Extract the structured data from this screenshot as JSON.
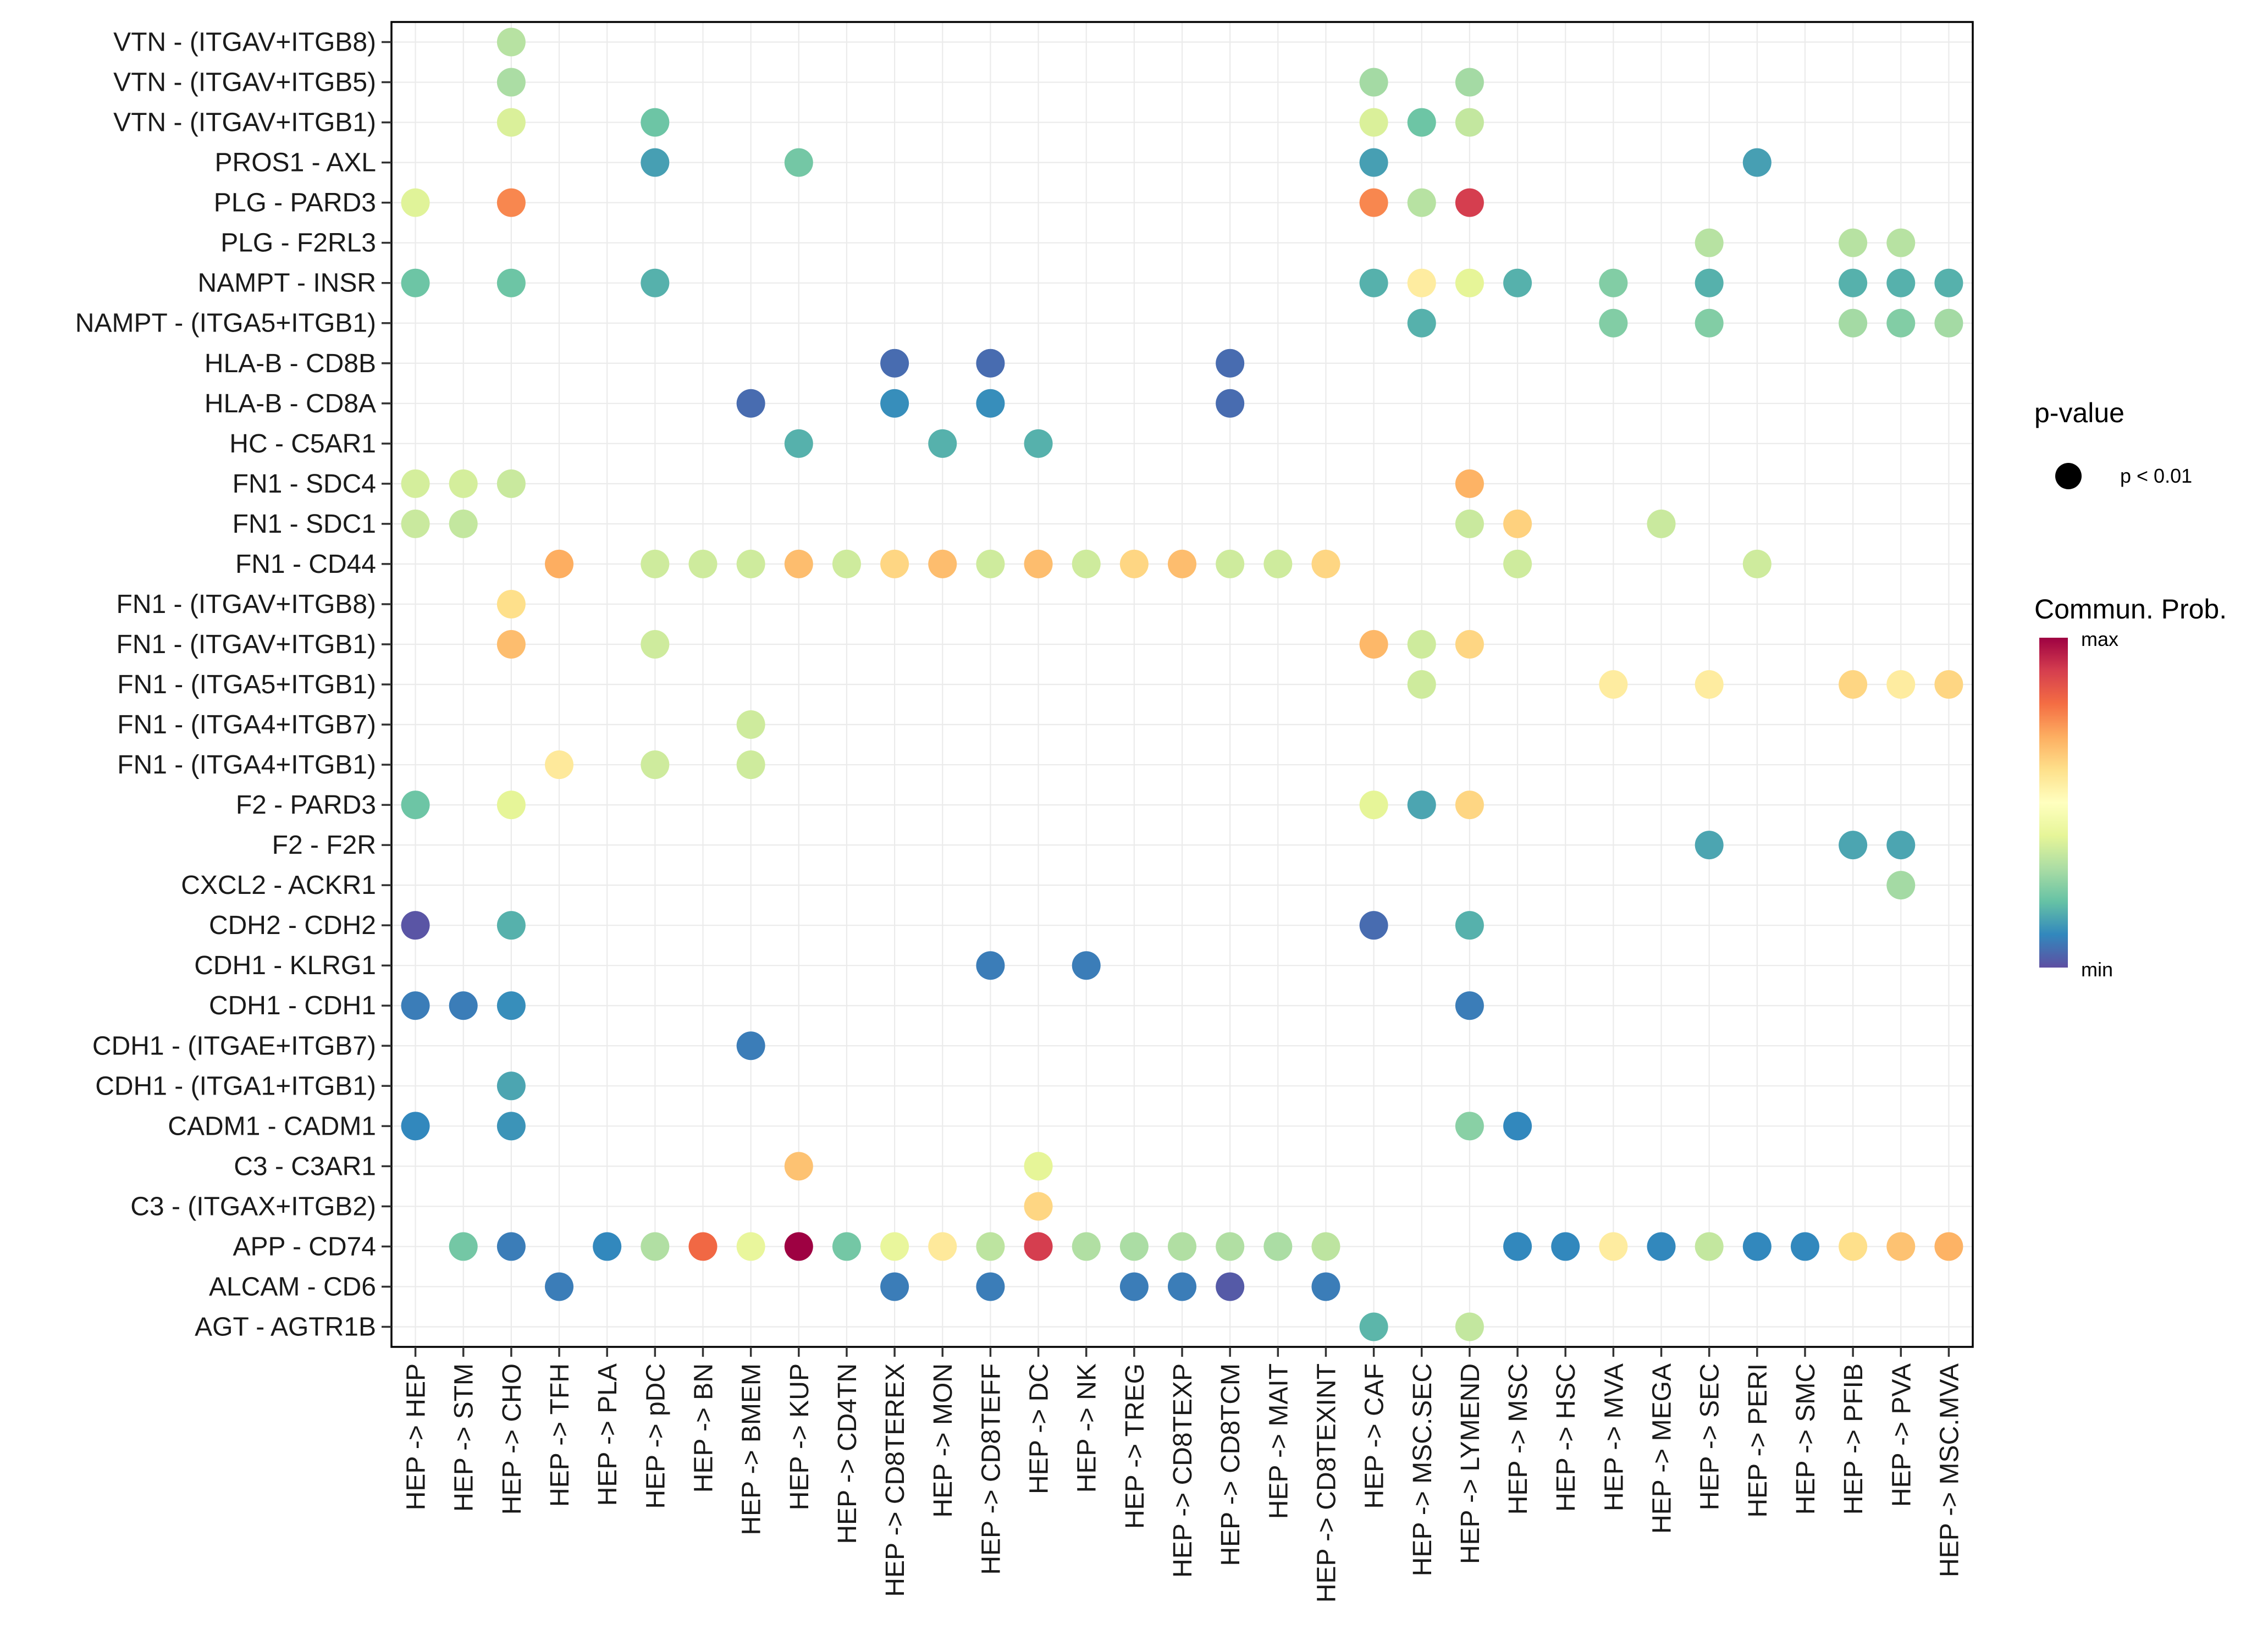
{
  "chart_data": {
    "type": "scatter",
    "subtype": "bubble-heatmap",
    "title": "",
    "xlabel": "",
    "ylabel": "",
    "grid": true,
    "value_scale": "normalized communication probability (0 = min, 1 = max)",
    "x_categories": [
      "HEP -> HEP",
      "HEP -> STM",
      "HEP -> CHO",
      "HEP -> TFH",
      "HEP -> PLA",
      "HEP -> pDC",
      "HEP -> BN",
      "HEP -> BMEM",
      "HEP -> KUP",
      "HEP -> CD4TN",
      "HEP -> CD8TEREX",
      "HEP -> MON",
      "HEP -> CD8TEFF",
      "HEP -> DC",
      "HEP -> NK",
      "HEP -> TREG",
      "HEP -> CD8TEXP",
      "HEP -> CD8TCM",
      "HEP -> MAIT",
      "HEP -> CD8TEXINT",
      "HEP -> CAF",
      "HEP -> MSC.SEC",
      "HEP -> LYMEND",
      "HEP -> MSC",
      "HEP -> HSC",
      "HEP -> MVA",
      "HEP -> MEGA",
      "HEP -> SEC",
      "HEP -> PERI",
      "HEP -> SMC",
      "HEP -> PFIB",
      "HEP -> PVA",
      "HEP -> MSC.MVA"
    ],
    "y_categories": [
      "VTN - (ITGAV+ITGB8)",
      "VTN - (ITGAV+ITGB5)",
      "VTN - (ITGAV+ITGB1)",
      "PROS1 - AXL",
      "PLG - PARD3",
      "PLG - F2RL3",
      "NAMPT - INSR",
      "NAMPT - (ITGA5+ITGB1)",
      "HLA-B - CD8B",
      "HLA-B - CD8A",
      "HC - C5AR1",
      "FN1 - SDC4",
      "FN1 - SDC1",
      "FN1 - CD44",
      "FN1 - (ITGAV+ITGB8)",
      "FN1 - (ITGAV+ITGB1)",
      "FN1 - (ITGA5+ITGB1)",
      "FN1 - (ITGA4+ITGB7)",
      "FN1 - (ITGA4+ITGB1)",
      "F2 - PARD3",
      "F2 - F2R",
      "CXCL2 - ACKR1",
      "CDH2 - CDH2",
      "CDH1 - KLRG1",
      "CDH1 - CDH1",
      "CDH1 - (ITGAE+ITGB7)",
      "CDH1 - (ITGA1+ITGB1)",
      "CADM1 - CADM1",
      "C3 - C3AR1",
      "C3 - (ITGAX+ITGB2)",
      "APP - CD74",
      "ALCAM - CD6",
      "AGT - AGTR1B"
    ],
    "points": [
      {
        "y": "VTN - (ITGAV+ITGB8)",
        "cells": [
          [
            2,
            0.32
          ]
        ]
      },
      {
        "y": "VTN - (ITGAV+ITGB5)",
        "cells": [
          [
            2,
            0.3
          ],
          [
            20,
            0.29
          ],
          [
            22,
            0.29
          ]
        ]
      },
      {
        "y": "VTN - (ITGAV+ITGB1)",
        "cells": [
          [
            2,
            0.38
          ],
          [
            5,
            0.21
          ],
          [
            20,
            0.38
          ],
          [
            21,
            0.21
          ],
          [
            22,
            0.34
          ]
        ]
      },
      {
        "y": "PROS1 - AXL",
        "cells": [
          [
            5,
            0.14
          ],
          [
            8,
            0.22
          ],
          [
            20,
            0.14
          ],
          [
            28,
            0.14
          ]
        ]
      },
      {
        "y": "PLG - PARD3",
        "cells": [
          [
            0,
            0.39
          ],
          [
            2,
            0.76
          ],
          [
            20,
            0.76
          ],
          [
            21,
            0.32
          ],
          [
            22,
            0.9
          ]
        ]
      },
      {
        "y": "PLG - F2RL3",
        "cells": [
          [
            27,
            0.32
          ],
          [
            30,
            0.32
          ],
          [
            31,
            0.32
          ]
        ]
      },
      {
        "y": "NAMPT - INSR",
        "cells": [
          [
            0,
            0.21
          ],
          [
            2,
            0.21
          ],
          [
            5,
            0.17
          ],
          [
            20,
            0.17
          ],
          [
            21,
            0.56
          ],
          [
            22,
            0.4
          ],
          [
            23,
            0.17
          ],
          [
            25,
            0.24
          ],
          [
            27,
            0.17
          ],
          [
            30,
            0.17
          ],
          [
            31,
            0.17
          ],
          [
            32,
            0.17
          ]
        ]
      },
      {
        "y": "NAMPT - (ITGA5+ITGB1)",
        "cells": [
          [
            21,
            0.17
          ],
          [
            25,
            0.24
          ],
          [
            27,
            0.24
          ],
          [
            30,
            0.29
          ],
          [
            31,
            0.24
          ],
          [
            32,
            0.29
          ]
        ]
      },
      {
        "y": "HLA-B - CD8B",
        "cells": [
          [
            10,
            0.05
          ],
          [
            12,
            0.05
          ],
          [
            17,
            0.05
          ]
        ]
      },
      {
        "y": "HLA-B - CD8A",
        "cells": [
          [
            7,
            0.05
          ],
          [
            10,
            0.11
          ],
          [
            12,
            0.11
          ],
          [
            17,
            0.05
          ]
        ]
      },
      {
        "y": "HC - C5AR1",
        "cells": [
          [
            8,
            0.17
          ],
          [
            11,
            0.17
          ],
          [
            13,
            0.17
          ]
        ]
      },
      {
        "y": "FN1 - SDC4",
        "cells": [
          [
            0,
            0.37
          ],
          [
            1,
            0.37
          ],
          [
            2,
            0.35
          ],
          [
            22,
            0.69
          ]
        ]
      },
      {
        "y": "FN1 - SDC1",
        "cells": [
          [
            0,
            0.35
          ],
          [
            1,
            0.34
          ],
          [
            22,
            0.35
          ],
          [
            23,
            0.63
          ],
          [
            26,
            0.35
          ]
        ]
      },
      {
        "y": "FN1 - CD44",
        "cells": [
          [
            3,
            0.7
          ],
          [
            5,
            0.36
          ],
          [
            6,
            0.36
          ],
          [
            7,
            0.36
          ],
          [
            8,
            0.67
          ],
          [
            9,
            0.36
          ],
          [
            10,
            0.62
          ],
          [
            11,
            0.67
          ],
          [
            12,
            0.36
          ],
          [
            13,
            0.67
          ],
          [
            14,
            0.36
          ],
          [
            15,
            0.62
          ],
          [
            16,
            0.67
          ],
          [
            17,
            0.36
          ],
          [
            18,
            0.36
          ],
          [
            19,
            0.62
          ],
          [
            23,
            0.36
          ],
          [
            28,
            0.36
          ]
        ]
      },
      {
        "y": "FN1 - (ITGAV+ITGB8)",
        "cells": [
          [
            2,
            0.6
          ]
        ]
      },
      {
        "y": "FN1 - (ITGAV+ITGB1)",
        "cells": [
          [
            2,
            0.67
          ],
          [
            5,
            0.36
          ],
          [
            20,
            0.68
          ],
          [
            21,
            0.36
          ],
          [
            22,
            0.62
          ]
        ]
      },
      {
        "y": "FN1 - (ITGA5+ITGB1)",
        "cells": [
          [
            21,
            0.36
          ],
          [
            25,
            0.56
          ],
          [
            27,
            0.56
          ],
          [
            30,
            0.62
          ],
          [
            31,
            0.56
          ],
          [
            32,
            0.62
          ]
        ]
      },
      {
        "y": "FN1 - (ITGA4+ITGB7)",
        "cells": [
          [
            7,
            0.36
          ]
        ]
      },
      {
        "y": "FN1 - (ITGA4+ITGB1)",
        "cells": [
          [
            3,
            0.57
          ],
          [
            5,
            0.36
          ],
          [
            7,
            0.36
          ]
        ]
      },
      {
        "y": "F2 - PARD3",
        "cells": [
          [
            0,
            0.21
          ],
          [
            2,
            0.4
          ],
          [
            20,
            0.4
          ],
          [
            21,
            0.15
          ],
          [
            22,
            0.62
          ]
        ]
      },
      {
        "y": "F2 - F2R",
        "cells": [
          [
            27,
            0.15
          ],
          [
            30,
            0.15
          ],
          [
            31,
            0.15
          ]
        ]
      },
      {
        "y": "CXCL2 - ACKR1",
        "cells": [
          [
            31,
            0.29
          ]
        ]
      },
      {
        "y": "CDH2 - CDH2",
        "cells": [
          [
            0,
            0.01
          ],
          [
            2,
            0.17
          ],
          [
            20,
            0.05
          ],
          [
            22,
            0.17
          ]
        ]
      },
      {
        "y": "CDH1 - KLRG1",
        "cells": [
          [
            12,
            0.08
          ],
          [
            14,
            0.08
          ]
        ]
      },
      {
        "y": "CDH1 - CDH1",
        "cells": [
          [
            0,
            0.08
          ],
          [
            1,
            0.08
          ],
          [
            2,
            0.11
          ],
          [
            22,
            0.08
          ]
        ]
      },
      {
        "y": "CDH1 - (ITGAE+ITGB7)",
        "cells": [
          [
            7,
            0.08
          ]
        ]
      },
      {
        "y": "CDH1 - (ITGA1+ITGB1)",
        "cells": [
          [
            2,
            0.15
          ]
        ]
      },
      {
        "y": "CADM1 - CADM1",
        "cells": [
          [
            0,
            0.1
          ],
          [
            2,
            0.12
          ],
          [
            22,
            0.25
          ],
          [
            23,
            0.1
          ]
        ]
      },
      {
        "y": "C3 - C3AR1",
        "cells": [
          [
            8,
            0.66
          ],
          [
            13,
            0.4
          ]
        ]
      },
      {
        "y": "C3 - (ITGAX+ITGB2)",
        "cells": [
          [
            13,
            0.62
          ]
        ]
      },
      {
        "y": "APP - CD74",
        "cells": [
          [
            1,
            0.22
          ],
          [
            2,
            0.08
          ],
          [
            4,
            0.1
          ],
          [
            5,
            0.31
          ],
          [
            6,
            0.81
          ],
          [
            7,
            0.41
          ],
          [
            8,
            1.0
          ],
          [
            9,
            0.22
          ],
          [
            10,
            0.41
          ],
          [
            11,
            0.57
          ],
          [
            12,
            0.33
          ],
          [
            13,
            0.9
          ],
          [
            14,
            0.31
          ],
          [
            15,
            0.3
          ],
          [
            16,
            0.31
          ],
          [
            17,
            0.31
          ],
          [
            18,
            0.3
          ],
          [
            19,
            0.33
          ],
          [
            23,
            0.1
          ],
          [
            24,
            0.1
          ],
          [
            25,
            0.56
          ],
          [
            26,
            0.1
          ],
          [
            27,
            0.34
          ],
          [
            28,
            0.1
          ],
          [
            29,
            0.1
          ],
          [
            30,
            0.6
          ],
          [
            31,
            0.66
          ],
          [
            32,
            0.69
          ]
        ]
      },
      {
        "y": "ALCAM - CD6",
        "cells": [
          [
            3,
            0.08
          ],
          [
            10,
            0.08
          ],
          [
            12,
            0.08
          ],
          [
            15,
            0.08
          ],
          [
            16,
            0.08
          ],
          [
            17,
            0.02
          ],
          [
            19,
            0.08
          ]
        ]
      },
      {
        "y": "AGT - AGTR1B",
        "cells": [
          [
            20,
            0.18
          ],
          [
            22,
            0.34
          ]
        ]
      }
    ],
    "color_scale": {
      "name": "Spectral",
      "stops": [
        "#5E4FA2",
        "#3288BD",
        "#66C2A5",
        "#ABDDA4",
        "#E6F598",
        "#FFFFBF",
        "#FEE08B",
        "#FDAE61",
        "#F46D43",
        "#D53E4F",
        "#9E0142"
      ],
      "min_label": "min",
      "max_label": "max"
    },
    "legends": {
      "position": "right",
      "size_legend": {
        "title": "p-value",
        "entries": [
          "p < 0.01"
        ]
      },
      "color_legend": {
        "title": "Commun. Prob.",
        "min_label": "min",
        "max_label": "max"
      }
    }
  }
}
